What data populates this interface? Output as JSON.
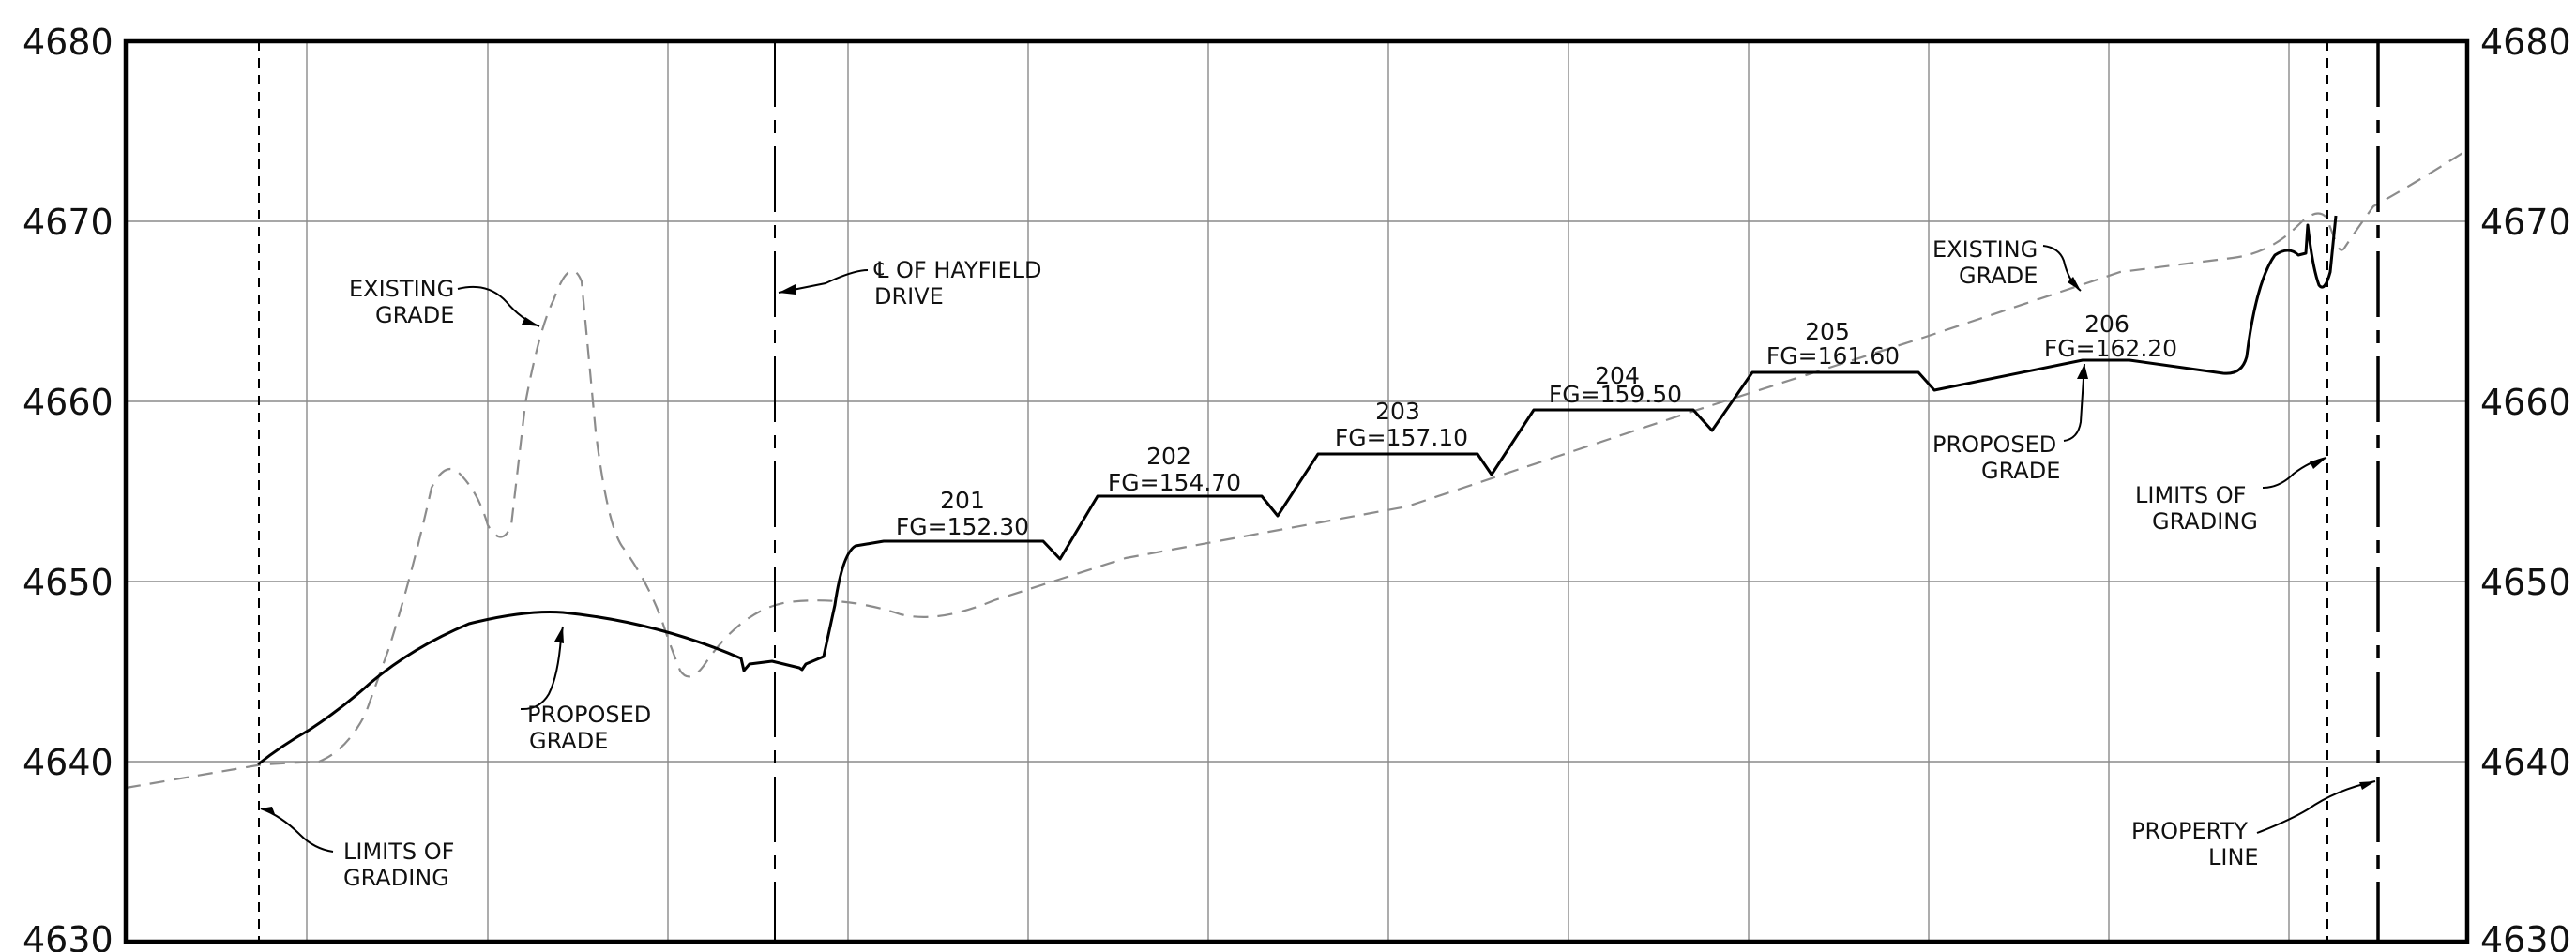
{
  "profile": {
    "elevation_labels": [
      "4680",
      "4670",
      "4660",
      "4650",
      "4640",
      "4630"
    ],
    "existing_grade_label": [
      "EXISTING",
      "GRADE"
    ],
    "proposed_grade_label": [
      "PROPOSED",
      "GRADE"
    ],
    "limits_of_grading_label": [
      "LIMITS OF",
      "GRADING"
    ],
    "centerline_label": [
      "℄ OF HAYFIELD",
      "DRIVE"
    ],
    "property_line_label": [
      "PROPERTY",
      "LINE"
    ],
    "lots": [
      {
        "lot": "201",
        "fg": "FG=152.30"
      },
      {
        "lot": "202",
        "fg": "FG=154.70"
      },
      {
        "lot": "203",
        "fg": "FG=157.10"
      },
      {
        "lot": "204",
        "fg": "FG=159.50"
      },
      {
        "lot": "205",
        "fg": "FG=161.60"
      },
      {
        "lot": "206",
        "fg": "FG=162.20"
      }
    ],
    "colors": {
      "proposed_line": "#000000",
      "existing_line": "#8c8c8c",
      "grid": "#8a8a8a"
    }
  }
}
